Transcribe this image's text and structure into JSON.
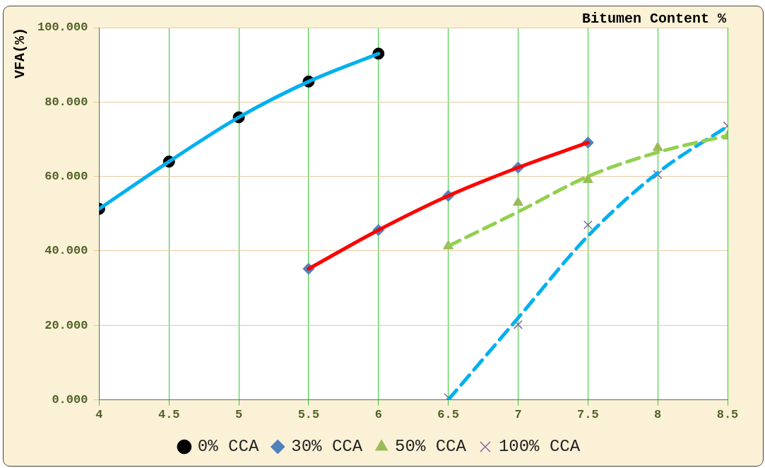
{
  "chart_data": {
    "type": "scatter",
    "xlabel": "Bitumen Content %",
    "ylabel": "VFA(%)",
    "xlim": [
      4,
      8.5
    ],
    "xticks": [
      4,
      4.5,
      5,
      5.5,
      6,
      6.5,
      7,
      7.5,
      8,
      8.5
    ],
    "ylim": [
      0,
      100
    ],
    "yticks": [
      {
        "value": 0,
        "label": "0.000"
      },
      {
        "value": 20,
        "label": "20.000"
      },
      {
        "value": 40,
        "label": "40.000"
      },
      {
        "value": 60,
        "label": "60.000"
      },
      {
        "value": 80,
        "label": "80.000"
      },
      {
        "value": 100,
        "label": "100.000"
      }
    ],
    "grid": true,
    "legend": "bottom",
    "series": [
      {
        "type": "line",
        "color": "#00b0f0",
        "line_style": "solid",
        "marker": "none",
        "x": [
          4,
          4.5,
          5,
          5.5,
          6
        ],
        "values": [
          51.3,
          64.0,
          75.9,
          85.5,
          93.0
        ]
      },
      {
        "type": "line",
        "color": "#ff0000",
        "line_style": "solid",
        "marker": "none",
        "x": [
          5.5,
          6,
          6.5,
          7,
          7.5
        ],
        "values": [
          35.2,
          45.6,
          54.8,
          62.4,
          69.1
        ]
      },
      {
        "type": "line",
        "color": "#92d050",
        "line_style": "dashed",
        "marker": "none",
        "x": [
          6.5,
          7,
          7.5,
          8,
          8.5
        ],
        "values": [
          41.3,
          50.5,
          60.0,
          66.5,
          71.0
        ]
      },
      {
        "type": "line",
        "color": "#00b0f0",
        "line_style": "dashed",
        "marker": "none",
        "x": [
          6.5,
          7,
          7.5,
          8,
          8.5
        ],
        "values": [
          0,
          22,
          44,
          61,
          73.5
        ]
      },
      {
        "type": "scatter",
        "name": "0% CCA",
        "color": "#000000",
        "marker": "circle",
        "x": [
          4,
          4.5,
          5,
          5.5,
          6
        ],
        "values": [
          51.3,
          64.0,
          75.9,
          85.5,
          93.0
        ]
      },
      {
        "type": "scatter",
        "name": "30% CCA",
        "color": "#4f81bd",
        "marker": "diamond",
        "x": [
          5.5,
          6,
          6.5,
          7,
          7.5
        ],
        "values": [
          35.2,
          45.6,
          54.8,
          62.4,
          69.1
        ]
      },
      {
        "type": "scatter",
        "name": "50% CCA",
        "color": "#9bbb59",
        "marker": "triangle",
        "x": [
          6.5,
          7,
          7.5,
          8,
          8.5
        ],
        "values": [
          41.3,
          53.0,
          59.1,
          67.7,
          70.8
        ]
      },
      {
        "type": "scatter",
        "name": "100% CCA",
        "color": "#8064a2",
        "marker": "cross",
        "x": [
          6.5,
          7,
          7.5,
          8,
          8.5
        ],
        "values": [
          0.6,
          20.2,
          47.0,
          60.5,
          73.6
        ]
      }
    ]
  }
}
